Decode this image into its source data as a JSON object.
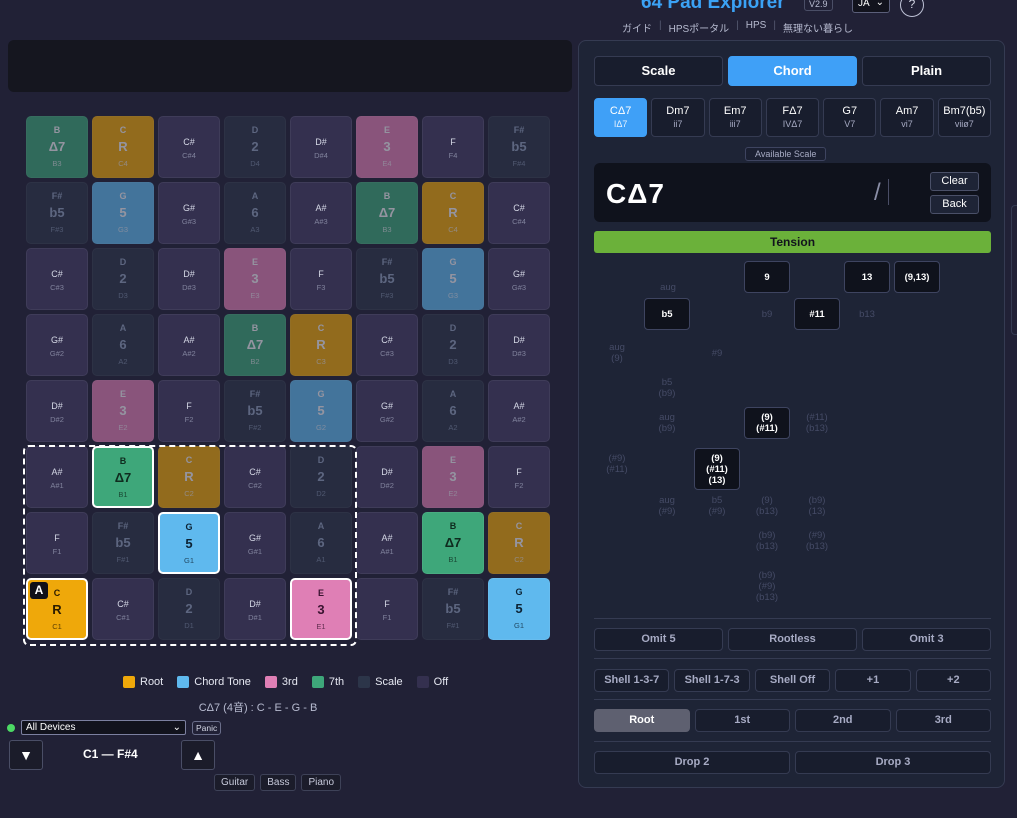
{
  "header": {
    "title": "64 Pad Explorer",
    "version": "V2.9",
    "language": "JA",
    "help": "?",
    "links": [
      "ガイド",
      "HPSポータル",
      "HPS",
      "無理ない暮らし"
    ]
  },
  "grid": {
    "rows": [
      [
        {
          "note": "B",
          "degree": "Δ7",
          "octave": "B3",
          "type": "7th",
          "dim": true
        },
        {
          "note": "C",
          "degree": "R",
          "octave": "C4",
          "type": "root",
          "dim": true
        },
        {
          "note": "C#",
          "degree": "",
          "octave": "C#4",
          "type": "off",
          "dim": false
        },
        {
          "note": "D",
          "degree": "2",
          "octave": "D4",
          "type": "scale",
          "dim": true
        },
        {
          "note": "D#",
          "degree": "",
          "octave": "D#4",
          "type": "off",
          "dim": false
        },
        {
          "note": "E",
          "degree": "3",
          "octave": "E4",
          "type": "third",
          "dim": true
        },
        {
          "note": "F",
          "degree": "",
          "octave": "F4",
          "type": "off",
          "dim": false
        },
        {
          "note": "F#",
          "degree": "b5",
          "octave": "F#4",
          "type": "scale",
          "dim": true
        }
      ],
      [
        {
          "note": "F#",
          "degree": "b5",
          "octave": "F#3",
          "type": "scale",
          "dim": true
        },
        {
          "note": "G",
          "degree": "5",
          "octave": "G3",
          "type": "tone",
          "dim": true
        },
        {
          "note": "G#",
          "degree": "",
          "octave": "G#3",
          "type": "off",
          "dim": false
        },
        {
          "note": "A",
          "degree": "6",
          "octave": "A3",
          "type": "scale",
          "dim": true
        },
        {
          "note": "A#",
          "degree": "",
          "octave": "A#3",
          "type": "off",
          "dim": false
        },
        {
          "note": "B",
          "degree": "Δ7",
          "octave": "B3",
          "type": "7th",
          "dim": true
        },
        {
          "note": "C",
          "degree": "R",
          "octave": "C4",
          "type": "root",
          "dim": true
        },
        {
          "note": "C#",
          "degree": "",
          "octave": "C#4",
          "type": "off",
          "dim": false
        }
      ],
      [
        {
          "note": "C#",
          "degree": "",
          "octave": "C#3",
          "type": "off",
          "dim": false
        },
        {
          "note": "D",
          "degree": "2",
          "octave": "D3",
          "type": "scale",
          "dim": true
        },
        {
          "note": "D#",
          "degree": "",
          "octave": "D#3",
          "type": "off",
          "dim": false
        },
        {
          "note": "E",
          "degree": "3",
          "octave": "E3",
          "type": "third",
          "dim": true
        },
        {
          "note": "F",
          "degree": "",
          "octave": "F3",
          "type": "off",
          "dim": false
        },
        {
          "note": "F#",
          "degree": "b5",
          "octave": "F#3",
          "type": "scale",
          "dim": true
        },
        {
          "note": "G",
          "degree": "5",
          "octave": "G3",
          "type": "tone",
          "dim": true
        },
        {
          "note": "G#",
          "degree": "",
          "octave": "G#3",
          "type": "off",
          "dim": false
        }
      ],
      [
        {
          "note": "G#",
          "degree": "",
          "octave": "G#2",
          "type": "off",
          "dim": false
        },
        {
          "note": "A",
          "degree": "6",
          "octave": "A2",
          "type": "scale",
          "dim": true
        },
        {
          "note": "A#",
          "degree": "",
          "octave": "A#2",
          "type": "off",
          "dim": false
        },
        {
          "note": "B",
          "degree": "Δ7",
          "octave": "B2",
          "type": "7th",
          "dim": true
        },
        {
          "note": "C",
          "degree": "R",
          "octave": "C3",
          "type": "root",
          "dim": true
        },
        {
          "note": "C#",
          "degree": "",
          "octave": "C#3",
          "type": "off",
          "dim": false
        },
        {
          "note": "D",
          "degree": "2",
          "octave": "D3",
          "type": "scale",
          "dim": true
        },
        {
          "note": "D#",
          "degree": "",
          "octave": "D#3",
          "type": "off",
          "dim": false
        }
      ],
      [
        {
          "note": "D#",
          "degree": "",
          "octave": "D#2",
          "type": "off",
          "dim": false
        },
        {
          "note": "E",
          "degree": "3",
          "octave": "E2",
          "type": "third",
          "dim": true
        },
        {
          "note": "F",
          "degree": "",
          "octave": "F2",
          "type": "off",
          "dim": false
        },
        {
          "note": "F#",
          "degree": "b5",
          "octave": "F#2",
          "type": "scale",
          "dim": true
        },
        {
          "note": "G",
          "degree": "5",
          "octave": "G2",
          "type": "tone",
          "dim": true
        },
        {
          "note": "G#",
          "degree": "",
          "octave": "G#2",
          "type": "off",
          "dim": false
        },
        {
          "note": "A",
          "degree": "6",
          "octave": "A2",
          "type": "scale",
          "dim": true
        },
        {
          "note": "A#",
          "degree": "",
          "octave": "A#2",
          "type": "off",
          "dim": false
        }
      ],
      [
        {
          "note": "A#",
          "degree": "",
          "octave": "A#1",
          "type": "off",
          "dim": false
        },
        {
          "note": "B",
          "degree": "Δ7",
          "octave": "B1",
          "type": "7th",
          "dim": false,
          "highlight": true
        },
        {
          "note": "C",
          "degree": "R",
          "octave": "C2",
          "type": "root",
          "dim": true
        },
        {
          "note": "C#",
          "degree": "",
          "octave": "C#2",
          "type": "off",
          "dim": false
        },
        {
          "note": "D",
          "degree": "2",
          "octave": "D2",
          "type": "scale",
          "dim": true
        },
        {
          "note": "D#",
          "degree": "",
          "octave": "D#2",
          "type": "off",
          "dim": false
        },
        {
          "note": "E",
          "degree": "3",
          "octave": "E2",
          "type": "third",
          "dim": true
        },
        {
          "note": "F",
          "degree": "",
          "octave": "F2",
          "type": "off",
          "dim": false
        }
      ],
      [
        {
          "note": "F",
          "degree": "",
          "octave": "F1",
          "type": "off",
          "dim": false
        },
        {
          "note": "F#",
          "degree": "b5",
          "octave": "F#1",
          "type": "scale",
          "dim": true
        },
        {
          "note": "G",
          "degree": "5",
          "octave": "G1",
          "type": "tone",
          "dim": false,
          "highlight": true
        },
        {
          "note": "G#",
          "degree": "",
          "octave": "G#1",
          "type": "off",
          "dim": false
        },
        {
          "note": "A",
          "degree": "6",
          "octave": "A1",
          "type": "scale",
          "dim": true
        },
        {
          "note": "A#",
          "degree": "",
          "octave": "A#1",
          "type": "off",
          "dim": false
        },
        {
          "note": "B",
          "degree": "Δ7",
          "octave": "B1",
          "type": "7th",
          "dim": false
        },
        {
          "note": "C",
          "degree": "R",
          "octave": "C2",
          "type": "root",
          "dim": true
        }
      ],
      [
        {
          "note": "C",
          "degree": "R",
          "octave": "C1",
          "type": "root",
          "dim": false,
          "highlight": true,
          "badge": "A"
        },
        {
          "note": "C#",
          "degree": "",
          "octave": "C#1",
          "type": "off",
          "dim": false
        },
        {
          "note": "D",
          "degree": "2",
          "octave": "D1",
          "type": "scale",
          "dim": true
        },
        {
          "note": "D#",
          "degree": "",
          "octave": "D#1",
          "type": "off",
          "dim": false
        },
        {
          "note": "E",
          "degree": "3",
          "octave": "E1",
          "type": "third",
          "dim": false,
          "highlight": true
        },
        {
          "note": "F",
          "degree": "",
          "octave": "F1",
          "type": "off",
          "dim": false
        },
        {
          "note": "F#",
          "degree": "b5",
          "octave": "F#1",
          "type": "scale",
          "dim": true
        },
        {
          "note": "G",
          "degree": "5",
          "octave": "G1",
          "type": "tone",
          "dim": false
        }
      ]
    ]
  },
  "colors": {
    "root": "#efa80a",
    "tone": "#5fb9ee",
    "third": "#df7fb5",
    "7th": "#3ea77a",
    "scale": "#2c3549",
    "off": "#34304f"
  },
  "legend": [
    {
      "label": "Root",
      "color": "#efa80a"
    },
    {
      "label": "Chord Tone",
      "color": "#5fb9ee"
    },
    {
      "label": "3rd",
      "color": "#df7fb5"
    },
    {
      "label": "7th",
      "color": "#3ea77a"
    },
    {
      "label": "Scale",
      "color": "#2c3549"
    },
    {
      "label": "Off",
      "color": "#34304f"
    }
  ],
  "chord_info": "CΔ7 (4音) : C - E - G - B",
  "midi": {
    "device": "All Devices",
    "panic": "Panic",
    "range": "C1 — F#4",
    "down": "▼",
    "up": "▲",
    "instruments": [
      "Guitar",
      "Bass",
      "Piano"
    ]
  },
  "panel": {
    "tabs": [
      "Scale",
      "Chord",
      "Plain"
    ],
    "diatonic": [
      {
        "name": "CΔ7",
        "roman": "IΔ7"
      },
      {
        "name": "Dm7",
        "roman": "ii7"
      },
      {
        "name": "Em7",
        "roman": "iii7"
      },
      {
        "name": "FΔ7",
        "roman": "IVΔ7"
      },
      {
        "name": "G7",
        "roman": "V7"
      },
      {
        "name": "Am7",
        "roman": "vi7"
      },
      {
        "name": "Bm7(b5)",
        "roman": "viiø7"
      }
    ],
    "available_scale": "Available Scale",
    "chord_name": "CΔ7",
    "slash": "/",
    "clear": "Clear",
    "back": "Back",
    "tension_label": "Tension",
    "tensions": [
      {
        "label": "aug",
        "on": false
      },
      {
        "label": "9",
        "on": true
      },
      {
        "label": "13",
        "on": true
      },
      {
        "label": "(9,13)",
        "on": true
      },
      {
        "label": "b5",
        "on": true
      },
      {
        "label": "b9",
        "on": false
      },
      {
        "label": "#11",
        "on": true
      },
      {
        "label": "b13",
        "on": false
      },
      {
        "label": "aug\n(9)",
        "on": false
      },
      {
        "label": "#9",
        "on": false
      },
      {
        "label": "b5\n(b9)",
        "on": false
      },
      {
        "label": "aug\n(b9)",
        "on": false
      },
      {
        "label": "(9)\n(#11)",
        "on": true
      },
      {
        "label": "(#11)\n(b13)",
        "on": false
      },
      {
        "label": "(#9)\n(#11)",
        "on": false
      },
      {
        "label": "(9)\n(#11)\n(13)",
        "on": true
      },
      {
        "label": "aug\n(#9)",
        "on": false
      },
      {
        "label": "b5\n(#9)",
        "on": false
      },
      {
        "label": "(9)\n(b13)",
        "on": false
      },
      {
        "label": "(b9)\n(13)",
        "on": false
      },
      {
        "label": "(b9)\n(b13)",
        "on": false
      },
      {
        "label": "(#9)\n(b13)",
        "on": false
      },
      {
        "label": "(b9)\n(#9)\n(b13)",
        "on": false
      }
    ],
    "omit_row": [
      "Omit 5",
      "Rootless",
      "Omit 3"
    ],
    "shell_row": [
      "Shell 1-3-7",
      "Shell 1-7-3",
      "Shell Off",
      "+1",
      "+2"
    ],
    "inversion_row": [
      "Root",
      "1st",
      "2nd",
      "3rd"
    ],
    "drop_row": [
      "Drop 2",
      "Drop 3"
    ]
  }
}
